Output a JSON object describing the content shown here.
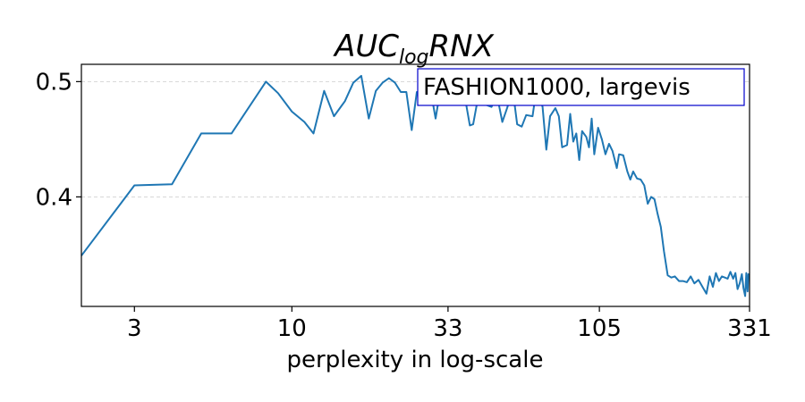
{
  "chart_data": {
    "type": "line",
    "title": {
      "base": "AUC",
      "subscript": "log",
      "suffix": "RNX"
    },
    "xlabel": "perplexity in log-scale",
    "ylabel": "",
    "x_scale": "log",
    "xlim": [
      2,
      331
    ],
    "ylim": [
      0.305,
      0.515
    ],
    "xticks": [
      3,
      10,
      33,
      105,
      331
    ],
    "xtick_labels": [
      "3",
      "10",
      "33",
      "105",
      "331"
    ],
    "yticks": [
      0.4,
      0.5
    ],
    "ytick_labels": [
      "0.4",
      "0.5"
    ],
    "grid": "y-dashed",
    "legend": {
      "text": "FASHION1000, largevis",
      "placement": "top-right",
      "border_color": "#0000cc"
    },
    "series": [
      {
        "color": "#1f77b4",
        "points": [
          [
            2,
            0.349
          ],
          [
            3,
            0.41
          ],
          [
            4,
            0.411
          ],
          [
            5,
            0.455
          ],
          [
            6.3,
            0.455
          ],
          [
            8.2,
            0.5
          ],
          [
            9,
            0.49
          ],
          [
            10,
            0.474
          ],
          [
            11,
            0.465
          ],
          [
            11.8,
            0.455
          ],
          [
            12.8,
            0.492
          ],
          [
            13.8,
            0.47
          ],
          [
            15,
            0.483
          ],
          [
            16,
            0.499
          ],
          [
            17,
            0.505
          ],
          [
            18,
            0.468
          ],
          [
            19,
            0.492
          ],
          [
            20,
            0.499
          ],
          [
            21,
            0.503
          ],
          [
            22,
            0.499
          ],
          [
            23,
            0.491
          ],
          [
            24,
            0.491
          ],
          [
            25,
            0.458
          ],
          [
            26,
            0.491
          ],
          [
            27,
            0.49
          ],
          [
            28,
            0.498
          ],
          [
            29,
            0.49
          ],
          [
            30,
            0.468
          ],
          [
            31,
            0.49
          ],
          [
            33,
            0.495
          ],
          [
            35,
            0.488
          ],
          [
            37,
            0.496
          ],
          [
            39,
            0.462
          ],
          [
            40,
            0.463
          ],
          [
            42,
            0.493
          ],
          [
            44,
            0.48
          ],
          [
            46,
            0.478
          ],
          [
            48,
            0.488
          ],
          [
            50,
            0.465
          ],
          [
            52,
            0.478
          ],
          [
            54,
            0.495
          ],
          [
            56,
            0.463
          ],
          [
            58,
            0.461
          ],
          [
            60,
            0.471
          ],
          [
            63,
            0.47
          ],
          [
            65,
            0.495
          ],
          [
            68,
            0.478
          ],
          [
            70,
            0.441
          ],
          [
            72,
            0.47
          ],
          [
            75,
            0.477
          ],
          [
            77,
            0.47
          ],
          [
            79,
            0.443
          ],
          [
            82,
            0.445
          ],
          [
            84,
            0.472
          ],
          [
            86,
            0.448
          ],
          [
            88,
            0.455
          ],
          [
            90,
            0.432
          ],
          [
            92,
            0.457
          ],
          [
            95,
            0.452
          ],
          [
            97,
            0.443
          ],
          [
            99,
            0.468
          ],
          [
            101,
            0.437
          ],
          [
            104,
            0.46
          ],
          [
            107,
            0.45
          ],
          [
            110,
            0.437
          ],
          [
            113,
            0.446
          ],
          [
            116,
            0.44
          ],
          [
            120,
            0.425
          ],
          [
            122,
            0.437
          ],
          [
            126,
            0.436
          ],
          [
            130,
            0.422
          ],
          [
            133,
            0.415
          ],
          [
            136,
            0.422
          ],
          [
            140,
            0.416
          ],
          [
            144,
            0.415
          ],
          [
            148,
            0.41
          ],
          [
            152,
            0.394
          ],
          [
            156,
            0.4
          ],
          [
            160,
            0.398
          ],
          [
            164,
            0.385
          ],
          [
            168,
            0.374
          ],
          [
            172,
            0.353
          ],
          [
            177,
            0.332
          ],
          [
            182,
            0.33
          ],
          [
            187,
            0.331
          ],
          [
            193,
            0.327
          ],
          [
            199,
            0.327
          ],
          [
            205,
            0.326
          ],
          [
            211,
            0.331
          ],
          [
            217,
            0.325
          ],
          [
            224,
            0.328
          ],
          [
            231,
            0.322
          ],
          [
            238,
            0.316
          ],
          [
            244,
            0.331
          ],
          [
            250,
            0.322
          ],
          [
            256,
            0.334
          ],
          [
            262,
            0.327
          ],
          [
            268,
            0.331
          ],
          [
            274,
            0.33
          ],
          [
            280,
            0.329
          ],
          [
            286,
            0.335
          ],
          [
            292,
            0.329
          ],
          [
            297,
            0.334
          ],
          [
            302,
            0.32
          ],
          [
            307,
            0.325
          ],
          [
            312,
            0.333
          ],
          [
            316,
            0.321
          ],
          [
            320,
            0.314
          ],
          [
            323,
            0.334
          ],
          [
            326,
            0.318
          ],
          [
            328,
            0.333
          ],
          [
            331,
            0.332
          ]
        ]
      }
    ]
  }
}
